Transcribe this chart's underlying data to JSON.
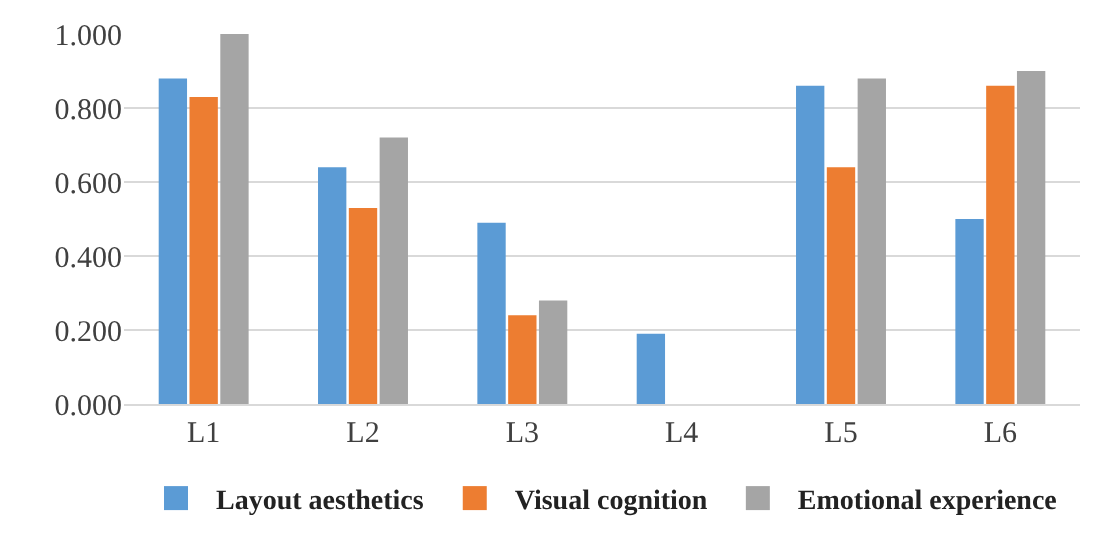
{
  "chart_data": {
    "type": "bar",
    "categories": [
      "L1",
      "L2",
      "L3",
      "L4",
      "L5",
      "L6"
    ],
    "series": [
      {
        "name": "Layout aesthetics",
        "color": "#5b9bd5",
        "values": [
          0.88,
          0.64,
          0.49,
          0.19,
          0.86,
          0.5
        ]
      },
      {
        "name": "Visual cognition",
        "color": "#ed7d31",
        "values": [
          0.83,
          0.53,
          0.24,
          0,
          0.64,
          0.86
        ]
      },
      {
        "name": "Emotional experience",
        "color": "#a5a5a5",
        "values": [
          1.0,
          0.72,
          0.28,
          0,
          0.88,
          0.9
        ]
      }
    ],
    "ylim": [
      0,
      1
    ],
    "yticks": [
      {
        "value": 0,
        "label": "0.000"
      },
      {
        "value": 0.2,
        "label": "0.200"
      },
      {
        "value": 0.4,
        "label": "0.400"
      },
      {
        "value": 0.6,
        "label": "0.600"
      },
      {
        "value": 0.8,
        "label": "0.800"
      },
      {
        "value": 1,
        "label": "1.000"
      }
    ],
    "grid": "y",
    "legend": "bottom"
  }
}
